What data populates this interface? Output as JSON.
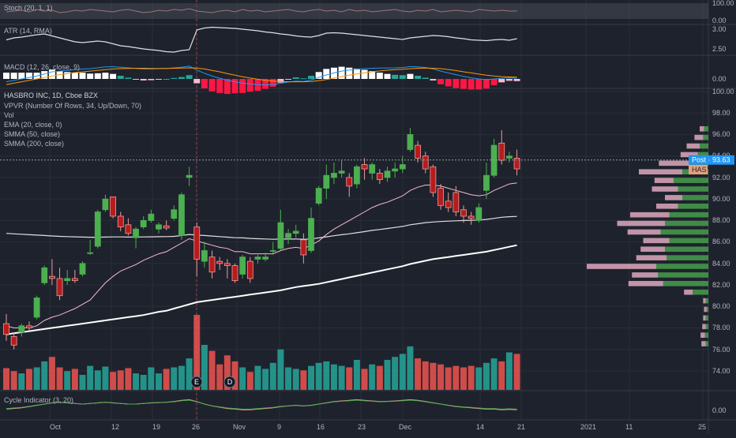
{
  "colors": {
    "background": "#1e222d",
    "grid": "#2a2e39",
    "axis_text": "#b2b5be",
    "up": "#4caf50",
    "down": "#ef5350",
    "up_volume": "#26a69a",
    "down_volume": "#ef5350",
    "ema": "#f8bbd0",
    "smma50": "#e0e0e0",
    "smma200": "#ffffff",
    "post_badge": "#2196f3",
    "has_badge": "#e4a07a"
  },
  "panes": {
    "stoch": {
      "label": "Stoch (20, 1, 1)",
      "ticks": [
        "100.00",
        "0.00"
      ]
    },
    "atr": {
      "label": "ATR (14, RMA)",
      "ticks": [
        "3.00",
        "2.50"
      ]
    },
    "macd": {
      "label": "MACD (12, 26, close, 9)",
      "ticks": [
        "0.00"
      ]
    },
    "main": {
      "title": "HASBRO INC, 1D, Cboe BZX",
      "indicators": [
        "VPVR (Number Of Rows, 34, Up/Down, 70)",
        "Vol",
        "EMA (20, close, 0)",
        "SMMA (50, close)",
        "SMMA (200, close)"
      ],
      "ticks": [
        "100.00",
        "98.00",
        "96.00",
        "94.00",
        "92.00",
        "90.00",
        "88.00",
        "86.00",
        "84.00",
        "82.00",
        "80.00",
        "78.00",
        "76.00",
        "74.00"
      ]
    },
    "cycle": {
      "label": "Cycle Indicator (3, 20)",
      "ticks": [
        "0.00"
      ]
    }
  },
  "badges": {
    "post": "Post · 93.63",
    "symbol": "HAS"
  },
  "events": [
    "E",
    "D"
  ],
  "x_axis": [
    "Oct",
    "12",
    "19",
    "26",
    "Nov",
    "9",
    "16",
    "23",
    "Dec",
    "14",
    "21",
    "2021",
    "11",
    "25"
  ],
  "chart_data": {
    "type": "candlestick",
    "title": "HASBRO INC, 1D, Cboe BZX",
    "ylim": [
      73,
      100
    ],
    "post_price": 93.63,
    "candles": [
      {
        "o": 78.4,
        "h": 79.3,
        "l": 76.8,
        "c": 77.4
      },
      {
        "o": 77.2,
        "h": 77.6,
        "l": 76.0,
        "c": 76.4
      },
      {
        "o": 77.6,
        "h": 78.4,
        "l": 77.2,
        "c": 78.2
      },
      {
        "o": 78.2,
        "h": 78.6,
        "l": 77.8,
        "c": 78.0
      },
      {
        "o": 79.0,
        "h": 81.0,
        "l": 78.8,
        "c": 80.8
      },
      {
        "o": 82.2,
        "h": 83.8,
        "l": 82.0,
        "c": 83.6
      },
      {
        "o": 82.8,
        "h": 84.4,
        "l": 82.0,
        "c": 82.6
      },
      {
        "o": 82.6,
        "h": 83.6,
        "l": 80.6,
        "c": 81.0
      },
      {
        "o": 82.4,
        "h": 83.4,
        "l": 82.0,
        "c": 82.6
      },
      {
        "o": 82.6,
        "h": 83.4,
        "l": 82.2,
        "c": 82.4
      },
      {
        "o": 83.0,
        "h": 84.2,
        "l": 82.8,
        "c": 84.0
      },
      {
        "o": 85.0,
        "h": 86.2,
        "l": 84.8,
        "c": 85.0
      },
      {
        "o": 85.6,
        "h": 89.0,
        "l": 85.4,
        "c": 88.8
      },
      {
        "o": 89.0,
        "h": 90.4,
        "l": 88.8,
        "c": 90.0
      },
      {
        "o": 90.2,
        "h": 90.2,
        "l": 88.2,
        "c": 88.4
      },
      {
        "o": 88.4,
        "h": 88.8,
        "l": 87.0,
        "c": 87.4
      },
      {
        "o": 87.6,
        "h": 88.2,
        "l": 86.6,
        "c": 86.8
      },
      {
        "o": 86.4,
        "h": 87.4,
        "l": 85.4,
        "c": 87.2
      },
      {
        "o": 87.4,
        "h": 88.4,
        "l": 87.2,
        "c": 88.0
      },
      {
        "o": 88.0,
        "h": 89.0,
        "l": 87.8,
        "c": 88.6
      },
      {
        "o": 87.2,
        "h": 87.8,
        "l": 86.8,
        "c": 87.6
      },
      {
        "o": 87.5,
        "h": 88.0,
        "l": 87.1,
        "c": 87.3
      },
      {
        "o": 88.2,
        "h": 89.4,
        "l": 88.0,
        "c": 89.0
      },
      {
        "o": 86.6,
        "h": 90.6,
        "l": 86.2,
        "c": 90.4
      },
      {
        "o": 92.0,
        "h": 93.0,
        "l": 91.2,
        "c": 92.2
      },
      {
        "o": 87.4,
        "h": 87.8,
        "l": 82.8,
        "c": 84.4
      },
      {
        "o": 84.2,
        "h": 86.0,
        "l": 83.6,
        "c": 85.2
      },
      {
        "o": 84.6,
        "h": 85.2,
        "l": 82.6,
        "c": 83.2
      },
      {
        "o": 84.2,
        "h": 84.6,
        "l": 83.4,
        "c": 84.0
      },
      {
        "o": 84.0,
        "h": 84.4,
        "l": 82.6,
        "c": 83.8
      },
      {
        "o": 83.8,
        "h": 84.0,
        "l": 82.2,
        "c": 82.4
      },
      {
        "o": 83.0,
        "h": 84.8,
        "l": 82.6,
        "c": 84.6
      },
      {
        "o": 84.2,
        "h": 84.6,
        "l": 82.2,
        "c": 82.6
      },
      {
        "o": 84.4,
        "h": 84.8,
        "l": 84.0,
        "c": 84.6
      },
      {
        "o": 84.4,
        "h": 85.0,
        "l": 84.2,
        "c": 84.6
      },
      {
        "o": 85.2,
        "h": 86.0,
        "l": 84.8,
        "c": 85.2
      },
      {
        "o": 85.4,
        "h": 89.0,
        "l": 85.2,
        "c": 87.8
      },
      {
        "o": 86.4,
        "h": 87.2,
        "l": 85.8,
        "c": 86.8
      },
      {
        "o": 86.8,
        "h": 87.6,
        "l": 86.4,
        "c": 87.0
      },
      {
        "o": 86.2,
        "h": 86.8,
        "l": 84.0,
        "c": 84.8
      },
      {
        "o": 85.2,
        "h": 89.2,
        "l": 85.0,
        "c": 88.2
      },
      {
        "o": 89.6,
        "h": 91.2,
        "l": 89.4,
        "c": 91.0
      },
      {
        "o": 91.0,
        "h": 93.2,
        "l": 90.0,
        "c": 92.2
      },
      {
        "o": 92.0,
        "h": 93.4,
        "l": 91.4,
        "c": 92.4
      },
      {
        "o": 92.4,
        "h": 93.6,
        "l": 92.0,
        "c": 92.6
      },
      {
        "o": 92.0,
        "h": 92.4,
        "l": 90.2,
        "c": 91.2
      },
      {
        "o": 91.4,
        "h": 93.2,
        "l": 91.0,
        "c": 93.0
      },
      {
        "o": 93.2,
        "h": 93.8,
        "l": 91.8,
        "c": 92.8
      },
      {
        "o": 92.4,
        "h": 93.4,
        "l": 91.8,
        "c": 93.2
      },
      {
        "o": 92.4,
        "h": 92.8,
        "l": 91.4,
        "c": 91.8
      },
      {
        "o": 92.0,
        "h": 93.0,
        "l": 91.6,
        "c": 92.6
      },
      {
        "o": 92.6,
        "h": 93.4,
        "l": 92.0,
        "c": 92.8
      },
      {
        "o": 92.8,
        "h": 94.0,
        "l": 92.4,
        "c": 93.2
      },
      {
        "o": 94.6,
        "h": 96.6,
        "l": 94.4,
        "c": 96.0
      },
      {
        "o": 95.0,
        "h": 95.4,
        "l": 93.4,
        "c": 93.8
      },
      {
        "o": 94.0,
        "h": 94.4,
        "l": 92.4,
        "c": 92.8
      },
      {
        "o": 93.0,
        "h": 93.2,
        "l": 90.2,
        "c": 90.6
      },
      {
        "o": 91.0,
        "h": 91.4,
        "l": 89.0,
        "c": 89.4
      },
      {
        "o": 89.8,
        "h": 90.6,
        "l": 88.8,
        "c": 89.2
      },
      {
        "o": 90.6,
        "h": 91.2,
        "l": 88.4,
        "c": 88.8
      },
      {
        "o": 89.0,
        "h": 89.4,
        "l": 87.8,
        "c": 88.4
      },
      {
        "o": 88.4,
        "h": 88.8,
        "l": 87.6,
        "c": 88.2
      },
      {
        "o": 88.0,
        "h": 89.6,
        "l": 87.8,
        "c": 89.2
      },
      {
        "o": 90.8,
        "h": 93.4,
        "l": 90.0,
        "c": 92.2
      },
      {
        "o": 92.2,
        "h": 95.6,
        "l": 92.0,
        "c": 95.0
      },
      {
        "o": 95.2,
        "h": 96.4,
        "l": 93.2,
        "c": 93.6
      },
      {
        "o": 93.8,
        "h": 94.4,
        "l": 93.4,
        "c": 94.0
      },
      {
        "o": 93.8,
        "h": 94.6,
        "l": 92.2,
        "c": 92.8
      }
    ],
    "volume_max": 1,
    "volume": [
      0.29,
      0.25,
      0.22,
      0.28,
      0.3,
      0.38,
      0.44,
      0.3,
      0.25,
      0.28,
      0.2,
      0.32,
      0.26,
      0.31,
      0.24,
      0.26,
      0.29,
      0.22,
      0.2,
      0.3,
      0.22,
      0.28,
      0.3,
      0.32,
      0.42,
      1.0,
      0.6,
      0.52,
      0.34,
      0.46,
      0.38,
      0.3,
      0.24,
      0.32,
      0.28,
      0.36,
      0.54,
      0.3,
      0.28,
      0.26,
      0.32,
      0.36,
      0.38,
      0.34,
      0.32,
      0.3,
      0.4,
      0.28,
      0.34,
      0.32,
      0.4,
      0.44,
      0.48,
      0.58,
      0.42,
      0.38,
      0.36,
      0.34,
      0.3,
      0.32,
      0.3,
      0.32,
      0.3,
      0.36,
      0.42,
      0.38,
      0.5,
      0.48
    ],
    "ema20": [
      78.2,
      78.0,
      78.0,
      78.0,
      78.2,
      78.7,
      79.0,
      79.2,
      79.5,
      79.8,
      80.2,
      80.6,
      81.4,
      82.2,
      82.8,
      83.3,
      83.6,
      83.9,
      84.3,
      84.6,
      84.9,
      85.1,
      85.5,
      85.9,
      86.3,
      86.1,
      85.9,
      85.7,
      85.5,
      85.4,
      85.1,
      85.1,
      84.9,
      84.9,
      84.9,
      84.9,
      85.2,
      85.4,
      85.5,
      85.4,
      85.7,
      86.1,
      86.7,
      87.2,
      87.6,
      88.0,
      88.4,
      88.8,
      89.2,
      89.5,
      89.7,
      90.0,
      90.3,
      90.8,
      91.1,
      91.3,
      91.3,
      91.2,
      91.0,
      90.8,
      90.6,
      90.4,
      90.3,
      90.4,
      90.8,
      91.1,
      91.4,
      91.5
    ],
    "smma50": [
      86.8,
      86.76,
      86.72,
      86.68,
      86.64,
      86.6,
      86.56,
      86.52,
      86.5,
      86.48,
      86.46,
      86.44,
      86.44,
      86.46,
      86.47,
      86.47,
      86.46,
      86.46,
      86.47,
      86.48,
      86.49,
      86.5,
      86.52,
      86.6,
      86.7,
      86.64,
      86.6,
      86.55,
      86.5,
      86.45,
      86.4,
      86.38,
      86.33,
      86.3,
      86.28,
      86.25,
      86.27,
      86.27,
      86.28,
      86.25,
      86.28,
      86.38,
      86.48,
      86.58,
      86.68,
      86.76,
      86.86,
      86.96,
      87.08,
      87.16,
      87.26,
      87.35,
      87.45,
      87.6,
      87.7,
      87.8,
      87.86,
      87.9,
      87.94,
      87.97,
      88.0,
      88.02,
      88.04,
      88.1,
      88.2,
      88.3,
      88.35,
      88.38
    ],
    "smma200": [
      77.4,
      77.5,
      77.6,
      77.7,
      77.8,
      77.9,
      78.0,
      78.1,
      78.2,
      78.3,
      78.4,
      78.5,
      78.6,
      78.7,
      78.8,
      78.9,
      79.0,
      79.1,
      79.2,
      79.35,
      79.5,
      79.6,
      79.8,
      80.0,
      80.2,
      80.4,
      80.5,
      80.6,
      80.7,
      80.8,
      80.9,
      81.0,
      81.1,
      81.2,
      81.3,
      81.4,
      81.5,
      81.65,
      81.8,
      81.9,
      82.0,
      82.1,
      82.25,
      82.4,
      82.55,
      82.7,
      82.85,
      83.0,
      83.15,
      83.3,
      83.45,
      83.6,
      83.75,
      83.95,
      84.1,
      84.25,
      84.4,
      84.5,
      84.6,
      84.7,
      84.8,
      84.9,
      85.0,
      85.1,
      85.25,
      85.4,
      85.55,
      85.7
    ],
    "vpvr": [
      {
        "p": 96.5,
        "up": 0.05,
        "down": 0.05
      },
      {
        "p": 95.7,
        "up": 0.06,
        "down": 0.1
      },
      {
        "p": 94.9,
        "up": 0.1,
        "down": 0.15
      },
      {
        "p": 94.1,
        "up": 0.12,
        "down": 0.2
      },
      {
        "p": 93.3,
        "up": 0.22,
        "down": 0.35
      },
      {
        "p": 92.5,
        "up": 0.3,
        "down": 0.5
      },
      {
        "p": 91.7,
        "up": 0.4,
        "down": 0.22
      },
      {
        "p": 90.9,
        "up": 0.35,
        "down": 0.3
      },
      {
        "p": 90.1,
        "up": 0.3,
        "down": 0.2
      },
      {
        "p": 89.3,
        "up": 0.35,
        "down": 0.25
      },
      {
        "p": 88.5,
        "up": 0.45,
        "down": 0.45
      },
      {
        "p": 87.7,
        "up": 0.5,
        "down": 0.55
      },
      {
        "p": 86.9,
        "up": 0.55,
        "down": 0.38
      },
      {
        "p": 86.1,
        "up": 0.45,
        "down": 0.3
      },
      {
        "p": 85.3,
        "up": 0.5,
        "down": 0.28
      },
      {
        "p": 84.5,
        "up": 0.48,
        "down": 0.35
      },
      {
        "p": 83.7,
        "up": 0.6,
        "down": 0.8
      },
      {
        "p": 82.9,
        "up": 0.58,
        "down": 0.3
      },
      {
        "p": 82.1,
        "up": 0.52,
        "down": 0.4
      },
      {
        "p": 81.3,
        "up": 0.18,
        "down": 0.1
      },
      {
        "p": 80.5,
        "up": 0.03,
        "down": 0.03
      },
      {
        "p": 79.7,
        "up": 0.02,
        "down": 0.03
      },
      {
        "p": 78.9,
        "up": 0.03,
        "down": 0.03
      },
      {
        "p": 78.1,
        "up": 0.03,
        "down": 0.04
      },
      {
        "p": 77.3,
        "up": 0.04,
        "down": 0.05
      },
      {
        "p": 76.5,
        "up": 0.03,
        "down": 0.05
      }
    ],
    "stoch": [
      0.45,
      0.5,
      0.55,
      0.45,
      0.6,
      0.5,
      0.55,
      0.4,
      0.45,
      0.55,
      0.5,
      0.6,
      0.55,
      0.5,
      0.45,
      0.55,
      0.6,
      0.5,
      0.4,
      0.45,
      0.55,
      0.5,
      0.6,
      0.55,
      0.65,
      0.5,
      0.45,
      0.4,
      0.5,
      0.55,
      0.45,
      0.6,
      0.5,
      0.55,
      0.45,
      0.5,
      0.55,
      0.6,
      0.5,
      0.45,
      0.55,
      0.6,
      0.5,
      0.55,
      0.45,
      0.6,
      0.5,
      0.55,
      0.45,
      0.5,
      0.55,
      0.6,
      0.5,
      0.45,
      0.55,
      0.5,
      0.6,
      0.45,
      0.5,
      0.55,
      0.5,
      0.45,
      0.6,
      0.55,
      0.5,
      0.55,
      0.5,
      0.5
    ],
    "atr": [
      2.75,
      2.8,
      2.82,
      2.85,
      2.88,
      2.9,
      2.85,
      2.8,
      2.75,
      2.7,
      2.68,
      2.7,
      2.72,
      2.7,
      2.65,
      2.6,
      2.58,
      2.55,
      2.52,
      2.5,
      2.48,
      2.45,
      2.44,
      2.48,
      2.5,
      3.0,
      3.05,
      3.07,
      3.06,
      3.05,
      3.04,
      3.02,
      3.0,
      2.98,
      2.95,
      2.93,
      2.9,
      2.88,
      2.85,
      2.83,
      2.82,
      2.86,
      2.92,
      2.93,
      2.92,
      2.9,
      2.88,
      2.86,
      2.84,
      2.82,
      2.8,
      2.78,
      2.76,
      2.8,
      2.82,
      2.84,
      2.86,
      2.85,
      2.83,
      2.8,
      2.78,
      2.75,
      2.74,
      2.73,
      2.75,
      2.76,
      2.74,
      2.78
    ],
    "macd": [
      -0.2,
      -0.1,
      0.0,
      0.1,
      0.2,
      0.35,
      0.5,
      0.55,
      0.6,
      0.65,
      0.7,
      0.72,
      0.78,
      0.85,
      0.86,
      0.82,
      0.78,
      0.74,
      0.7,
      0.7,
      0.72,
      0.74,
      0.78,
      0.82,
      0.9,
      0.62,
      0.4,
      0.2,
      0.05,
      -0.1,
      -0.2,
      -0.3,
      -0.35,
      -0.4,
      -0.42,
      -0.4,
      -0.3,
      -0.22,
      -0.15,
      -0.18,
      -0.08,
      0.1,
      0.28,
      0.42,
      0.55,
      0.62,
      0.68,
      0.72,
      0.75,
      0.76,
      0.77,
      0.78,
      0.8,
      0.88,
      0.85,
      0.8,
      0.7,
      0.55,
      0.42,
      0.3,
      0.18,
      0.08,
      0.0,
      -0.05,
      0.0,
      0.05,
      0.08,
      0.05
    ],
    "macd_signal": [
      -0.4,
      -0.3,
      -0.2,
      -0.1,
      0.0,
      0.1,
      0.2,
      0.3,
      0.38,
      0.45,
      0.5,
      0.55,
      0.6,
      0.65,
      0.7,
      0.72,
      0.74,
      0.75,
      0.75,
      0.74,
      0.74,
      0.74,
      0.75,
      0.76,
      0.78,
      0.76,
      0.7,
      0.6,
      0.5,
      0.38,
      0.26,
      0.15,
      0.06,
      -0.02,
      -0.1,
      -0.15,
      -0.18,
      -0.2,
      -0.2,
      -0.2,
      -0.18,
      -0.12,
      -0.04,
      0.06,
      0.16,
      0.26,
      0.35,
      0.43,
      0.5,
      0.56,
      0.61,
      0.65,
      0.68,
      0.72,
      0.75,
      0.76,
      0.75,
      0.72,
      0.66,
      0.59,
      0.5,
      0.42,
      0.34,
      0.26,
      0.2,
      0.16,
      0.14,
      0.12
    ],
    "cycle": [
      0.1,
      0.15,
      0.2,
      0.3,
      0.4,
      0.5,
      0.6,
      0.65,
      0.6,
      0.55,
      0.5,
      0.55,
      0.6,
      0.65,
      0.6,
      0.55,
      0.5,
      0.5,
      0.55,
      0.6,
      0.62,
      0.65,
      0.7,
      0.8,
      0.85,
      0.7,
      0.5,
      0.35,
      0.25,
      0.15,
      0.1,
      0.05,
      0.05,
      0.1,
      0.15,
      0.2,
      0.3,
      0.35,
      0.4,
      0.35,
      0.4,
      0.5,
      0.6,
      0.7,
      0.75,
      0.8,
      0.85,
      0.8,
      0.75,
      0.7,
      0.72,
      0.75,
      0.8,
      0.85,
      0.8,
      0.7,
      0.6,
      0.5,
      0.4,
      0.3,
      0.25,
      0.2,
      0.15,
      0.1,
      0.1,
      0.05,
      0.08,
      0.05
    ]
  }
}
